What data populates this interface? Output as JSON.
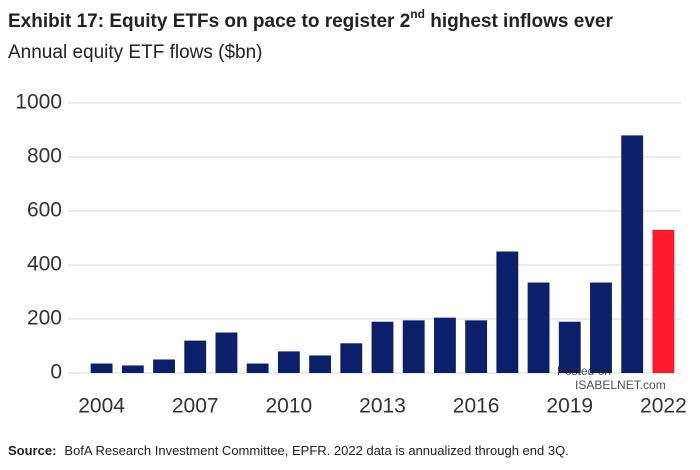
{
  "chart_data": {
    "type": "bar",
    "title_parts": [
      "Exhibit 17: Equity ETFs on pace to register 2",
      "nd",
      " highest inflows ever"
    ],
    "subtitle": "Annual equity ETF flows ($bn)",
    "x": [
      2004,
      2005,
      2006,
      2007,
      2008,
      2009,
      2010,
      2011,
      2012,
      2013,
      2014,
      2015,
      2016,
      2017,
      2018,
      2019,
      2020,
      2021,
      2022
    ],
    "values": [
      35,
      28,
      50,
      120,
      150,
      35,
      80,
      65,
      110,
      190,
      195,
      205,
      195,
      450,
      335,
      190,
      335,
      880,
      530
    ],
    "colors": [
      "#0c1f6b",
      "#0c1f6b",
      "#0c1f6b",
      "#0c1f6b",
      "#0c1f6b",
      "#0c1f6b",
      "#0c1f6b",
      "#0c1f6b",
      "#0c1f6b",
      "#0c1f6b",
      "#0c1f6b",
      "#0c1f6b",
      "#0c1f6b",
      "#0c1f6b",
      "#0c1f6b",
      "#0c1f6b",
      "#0c1f6b",
      "#0c1f6b",
      "#ff1a2b"
    ],
    "xlim": [
      2003.5,
      2022.5
    ],
    "xticks": [
      2004,
      2007,
      2010,
      2013,
      2016,
      2019,
      2022
    ],
    "ylim": [
      0,
      1000
    ],
    "yticks": [
      0,
      200,
      400,
      600,
      800,
      1000
    ],
    "grid": true,
    "watermark": [
      "Posted on",
      "ISABELNET.com"
    ],
    "source_label": "Source:",
    "source": "BofA Research Investment Committee, EPFR. 2022 data is annualized through end 3Q."
  }
}
